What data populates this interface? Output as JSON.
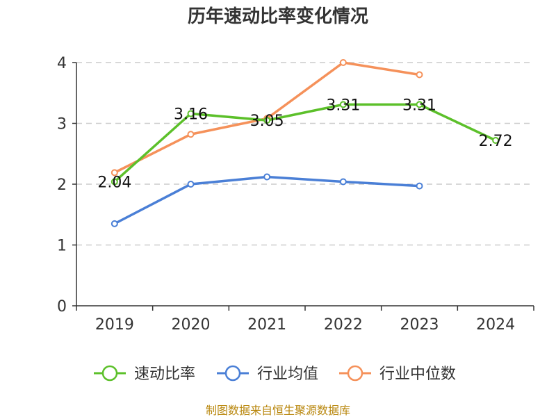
{
  "chart_data": {
    "type": "line",
    "title": "历年速动比率变化情况",
    "categories": [
      "2019",
      "2020",
      "2021",
      "2022",
      "2023",
      "2024"
    ],
    "ylim": [
      0,
      4
    ],
    "yticks": [
      "0",
      "1",
      "2",
      "3",
      "4"
    ],
    "grid": true,
    "legend_position": "bottom",
    "series": [
      {
        "name": "速动比率",
        "color": "#5cc02a",
        "values": [
          2.04,
          3.16,
          3.05,
          3.31,
          3.31,
          2.72
        ],
        "labels": [
          "2.04",
          "3.16",
          "3.05",
          "3.31",
          "3.31",
          "2.72"
        ]
      },
      {
        "name": "行业均值",
        "color": "#4a7fd6",
        "values": [
          1.35,
          2.0,
          2.12,
          2.04,
          1.97,
          null
        ]
      },
      {
        "name": "行业中位数",
        "color": "#f5915a",
        "values": [
          2.19,
          2.82,
          3.08,
          4.0,
          3.8,
          null
        ]
      }
    ],
    "source": "制图数据来自恒生聚源数据库"
  }
}
